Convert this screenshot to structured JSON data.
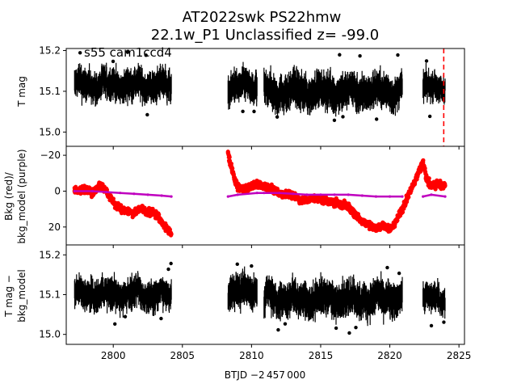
{
  "title_line1": "AT2022swk  PS22hmw",
  "title_line2": "22.1w_P1 Unclassified z= -99.0",
  "annotation": "s55 cam1ccd4",
  "xlabel": "BTJD −2 457 000",
  "colors": {
    "tmag": "#000000",
    "bkg": "#ff0000",
    "bkg_model": "#bf00bf",
    "marker_line": "#ff0000"
  },
  "chart_data": [
    {
      "type": "scatter",
      "panel": "top",
      "ylabel": "T mag",
      "xlim": [
        2796.6,
        2825.4
      ],
      "ylim": [
        15.205,
        14.965
      ],
      "y_inverted": true,
      "yticks": [
        15.0,
        15.1,
        15.2
      ],
      "ytick_labels": [
        "15.0",
        "15.1",
        "15.2"
      ],
      "vertical_marker_x": 2823.9,
      "series": [
        {
          "color": "#000000",
          "segments": [
            {
              "x_start": 2797.2,
              "x_end": 2804.2,
              "mean": 15.115,
              "scatter": 0.045
            },
            {
              "x_start": 2808.3,
              "x_end": 2810.4,
              "mean": 15.11,
              "scatter": 0.045
            },
            {
              "x_start": 2810.9,
              "x_end": 2820.9,
              "mean": 15.1,
              "scatter": 0.05
            },
            {
              "x_start": 2822.4,
              "x_end": 2824.0,
              "mean": 15.11,
              "scatter": 0.04
            }
          ]
        }
      ]
    },
    {
      "type": "scatter",
      "panel": "middle",
      "ylabel_line1": "Bkg (red)/",
      "ylabel_line2": "bkg_model (purple)",
      "xlim": [
        2796.6,
        2825.4
      ],
      "ylim": [
        -25,
        30
      ],
      "yticks": [
        -20,
        0,
        20
      ],
      "ytick_labels": [
        "−20",
        "0",
        "20"
      ],
      "series": [
        {
          "color": "#ff0000",
          "points": [
            [
              2797.2,
              0
            ],
            [
              2797.8,
              -1
            ],
            [
              2798.5,
              1
            ],
            [
              2799.0,
              -3
            ],
            [
              2799.5,
              0
            ],
            [
              2800.0,
              6
            ],
            [
              2800.5,
              10
            ],
            [
              2801.0,
              11
            ],
            [
              2801.5,
              12
            ],
            [
              2802.0,
              9
            ],
            [
              2802.5,
              12
            ],
            [
              2803.0,
              12
            ],
            [
              2803.5,
              17
            ],
            [
              2804.0,
              22
            ],
            [
              2804.2,
              24
            ],
            [
              2808.3,
              -22
            ],
            [
              2808.5,
              -14
            ],
            [
              2808.8,
              -6
            ],
            [
              2809.0,
              -2
            ],
            [
              2809.5,
              -1
            ],
            [
              2810.4,
              -4
            ],
            [
              2810.9,
              -3
            ],
            [
              2811.5,
              -1
            ],
            [
              2812.0,
              1
            ],
            [
              2812.5,
              2
            ],
            [
              2813.0,
              2
            ],
            [
              2813.5,
              5
            ],
            [
              2814.0,
              5
            ],
            [
              2814.5,
              4
            ],
            [
              2815.0,
              5
            ],
            [
              2815.5,
              6
            ],
            [
              2816.0,
              6
            ],
            [
              2816.5,
              7
            ],
            [
              2817.0,
              9
            ],
            [
              2817.5,
              13
            ],
            [
              2818.0,
              17
            ],
            [
              2818.5,
              19
            ],
            [
              2819.0,
              21
            ],
            [
              2819.5,
              19
            ],
            [
              2820.0,
              22
            ],
            [
              2820.5,
              16
            ],
            [
              2820.9,
              10
            ],
            [
              2822.4,
              -16
            ],
            [
              2822.7,
              -6
            ],
            [
              2823.0,
              -3
            ],
            [
              2823.5,
              -4
            ],
            [
              2824.0,
              -3
            ]
          ]
        },
        {
          "color": "#bf00bf",
          "points": [
            [
              2797.2,
              0
            ],
            [
              2798.5,
              0
            ],
            [
              2799.5,
              0.5
            ],
            [
              2800.5,
              1
            ],
            [
              2801.5,
              1.5
            ],
            [
              2802.5,
              2
            ],
            [
              2803.5,
              2.5
            ],
            [
              2804.2,
              3
            ],
            [
              2808.3,
              3
            ],
            [
              2809.0,
              2
            ],
            [
              2810.4,
              1
            ],
            [
              2810.9,
              1
            ],
            [
              2812.0,
              1
            ],
            [
              2813.0,
              1.5
            ],
            [
              2814.0,
              2
            ],
            [
              2815.0,
              2
            ],
            [
              2816.0,
              2
            ],
            [
              2817.0,
              2
            ],
            [
              2818.0,
              2.5
            ],
            [
              2819.0,
              3
            ],
            [
              2820.0,
              3
            ],
            [
              2820.9,
              3
            ],
            [
              2822.4,
              3
            ],
            [
              2823.0,
              2
            ],
            [
              2824.0,
              3
            ]
          ]
        }
      ]
    },
    {
      "type": "scatter",
      "panel": "bottom",
      "ylabel_line1": "T mag −",
      "ylabel_line2": "bkg_model",
      "xlim": [
        2796.6,
        2825.4
      ],
      "ylim": [
        15.225,
        14.975
      ],
      "y_inverted": true,
      "yticks": [
        15.0,
        15.1,
        15.2
      ],
      "ytick_labels": [
        "15.0",
        "15.1",
        "15.2"
      ],
      "xticks": [
        2800,
        2805,
        2810,
        2815,
        2820,
        2825
      ],
      "xtick_labels": [
        "2800",
        "2805",
        "2810",
        "2815",
        "2820",
        "2825"
      ],
      "series": [
        {
          "color": "#000000",
          "segments": [
            {
              "x_start": 2797.2,
              "x_end": 2804.2,
              "mean": 15.1,
              "scatter": 0.045
            },
            {
              "x_start": 2808.3,
              "x_end": 2810.4,
              "mean": 15.11,
              "scatter": 0.05
            },
            {
              "x_start": 2810.9,
              "x_end": 2820.9,
              "mean": 15.09,
              "scatter": 0.05
            },
            {
              "x_start": 2822.4,
              "x_end": 2824.0,
              "mean": 15.09,
              "scatter": 0.04
            }
          ]
        }
      ]
    }
  ]
}
